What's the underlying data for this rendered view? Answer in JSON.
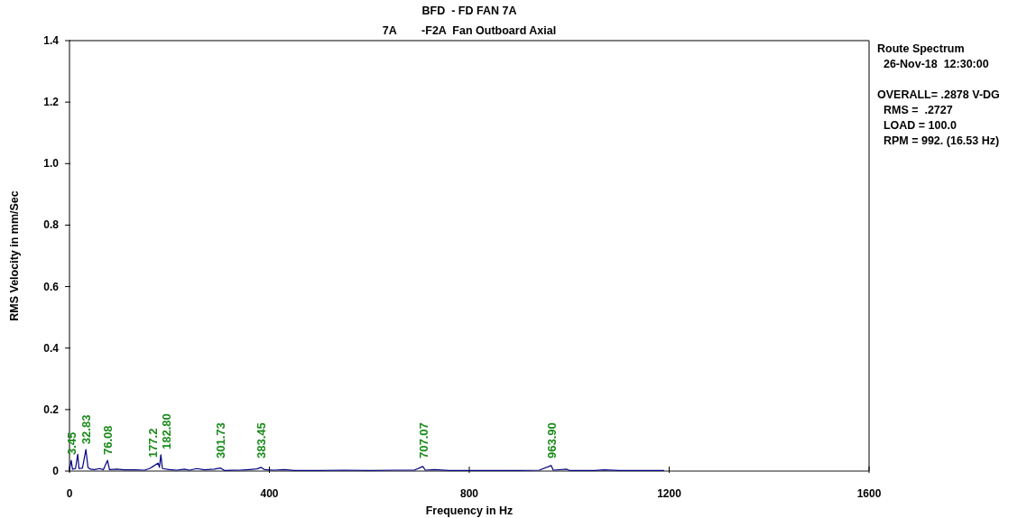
{
  "chart_data": {
    "type": "line",
    "title": "BFD  - FD FAN 7A",
    "subtitle": "7A        -F2A  Fan Outboard Axial",
    "xlabel": "Frequency in Hz",
    "ylabel": "RMS Velocity in mm/Sec",
    "xlim": [
      0,
      1600
    ],
    "xticks": [
      0,
      400,
      800,
      1200,
      1600
    ],
    "ylim": [
      0,
      1.4
    ],
    "yticks": [
      0,
      0.2,
      0.4,
      0.6,
      0.8,
      {
        "value": 1,
        "label": "1.0"
      },
      1.2,
      1.4
    ],
    "grid": false,
    "marker": "none",
    "line_style": "solid",
    "x": [
      0,
      3.45,
      6,
      12,
      16.5,
      19,
      26,
      32.83,
      37,
      42,
      50,
      60,
      68,
      76.08,
      80,
      95,
      110,
      130,
      150,
      160,
      170,
      177.2,
      180,
      182.8,
      186,
      200,
      215,
      230,
      240,
      255,
      270,
      290,
      301.73,
      310,
      340,
      360,
      375,
      383.45,
      390,
      410,
      430,
      450,
      500,
      550,
      600,
      650,
      690,
      707.07,
      712,
      730,
      760,
      800,
      850,
      900,
      940,
      963.9,
      968,
      995,
      1000,
      1050,
      1070,
      1100,
      1150,
      1190
    ],
    "series": [
      {
        "color": "#000080",
        "values": [
          0.005,
          0.035,
          0.006,
          0.008,
          0.055,
          0.008,
          0.01,
          0.07,
          0.012,
          0.006,
          0.005,
          0.008,
          0.005,
          0.035,
          0.005,
          0.006,
          0.004,
          0.004,
          0.003,
          0.008,
          0.018,
          0.026,
          0.012,
          0.053,
          0.008,
          0.005,
          0.003,
          0.006,
          0.003,
          0.008,
          0.004,
          0.006,
          0.01,
          0.002,
          0.003,
          0.005,
          0.007,
          0.012,
          0.005,
          0.003,
          0.005,
          0.002,
          0.002,
          0.003,
          0.002,
          0.003,
          0.003,
          0.015,
          0.003,
          0.005,
          0.002,
          0.002,
          0.002,
          0.002,
          0.003,
          0.018,
          0.003,
          0.006,
          0.002,
          0.002,
          0.004,
          0.002,
          0.002,
          0.002
        ]
      }
    ],
    "annotations": [
      {
        "text": "3.45",
        "x": 3.45,
        "y": 0.035
      },
      {
        "text": "32.83",
        "x": 32.83,
        "y": 0.07
      },
      {
        "text": "76.08",
        "x": 76.08,
        "y": 0.035
      },
      {
        "text": "177.2",
        "x": 177.2,
        "y": 0.026
      },
      {
        "text": "182.80",
        "x": 182.8,
        "y": 0.053
      },
      {
        "text": "301.73",
        "x": 301.73,
        "y": 0.01
      },
      {
        "text": "383.45",
        "x": 383.45,
        "y": 0.012
      },
      {
        "text": "707.07",
        "x": 707.07,
        "y": 0.015
      },
      {
        "text": "963.90",
        "x": 963.9,
        "y": 0.018
      },
      "Route Spectrum",
      "  26-Nov-18  12:30:00",
      "OVERALL= .2878 V-DG",
      "  RMS =  .2727",
      "  LOAD = 100.0",
      "  RPM = 992. (16.53 Hz)"
    ]
  }
}
